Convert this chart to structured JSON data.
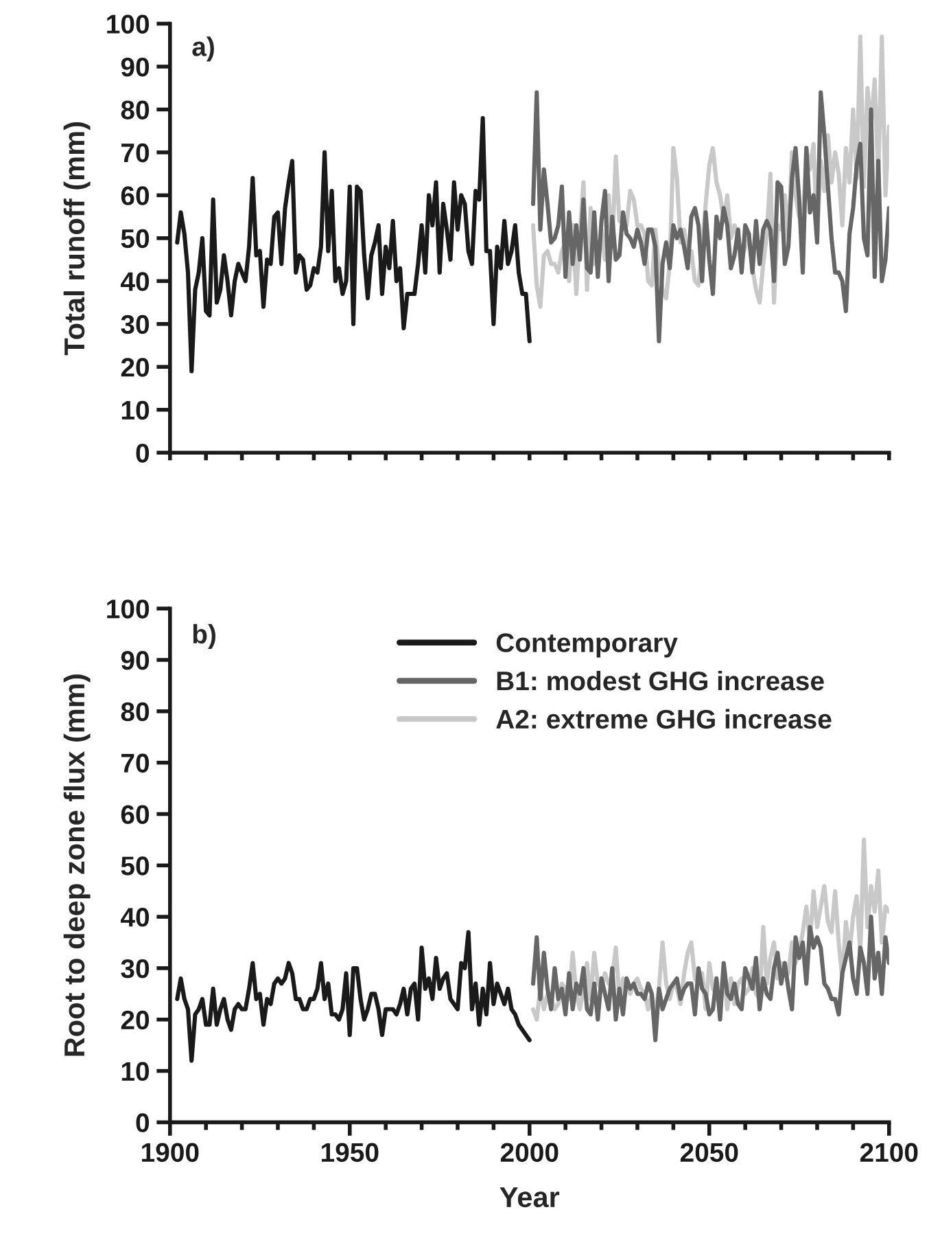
{
  "chart_data": [
    {
      "type": "line",
      "ylabel": "Total runoff (mm)",
      "annotations": [
        "a)"
      ],
      "xlim": [
        1900,
        2100
      ],
      "xticks": [
        {
          "value": 1900,
          "label": null
        },
        {
          "value": 1910,
          "label": null
        },
        {
          "value": 1920,
          "label": null
        },
        {
          "value": 1930,
          "label": null
        },
        {
          "value": 1940,
          "label": null
        },
        {
          "value": 1950,
          "label": null
        },
        {
          "value": 1960,
          "label": null
        },
        {
          "value": 1970,
          "label": null
        },
        {
          "value": 1980,
          "label": null
        },
        {
          "value": 1990,
          "label": null
        },
        {
          "value": 2000,
          "label": null
        },
        {
          "value": 2010,
          "label": null
        },
        {
          "value": 2020,
          "label": null
        },
        {
          "value": 2030,
          "label": null
        },
        {
          "value": 2040,
          "label": null
        },
        {
          "value": 2050,
          "label": null
        },
        {
          "value": 2060,
          "label": null
        },
        {
          "value": 2070,
          "label": null
        },
        {
          "value": 2080,
          "label": null
        },
        {
          "value": 2090,
          "label": null
        },
        {
          "value": 2100,
          "label": null
        }
      ],
      "ylim": [
        0,
        100
      ],
      "yticks": [
        0,
        10,
        20,
        30,
        40,
        50,
        60,
        70,
        80,
        90,
        100
      ],
      "tick_labels": "y",
      "grid": false,
      "legend": false,
      "line_style": "solid",
      "marker": "none",
      "series": [
        {
          "color": "#1a1a1a",
          "x": [
            1902,
            1903,
            1904,
            1905,
            1906,
            1907,
            1908,
            1909,
            1910,
            1911,
            1912,
            1913,
            1914,
            1915,
            1916,
            1917,
            1918,
            1919,
            1920,
            1921,
            1922,
            1923,
            1924,
            1925,
            1926,
            1927,
            1928,
            1929,
            1930,
            1931,
            1932,
            1933,
            1934,
            1935,
            1936,
            1937,
            1938,
            1939,
            1940,
            1941,
            1942,
            1943,
            1944,
            1945,
            1946,
            1947,
            1948,
            1949,
            1950,
            1951,
            1952,
            1953,
            1954,
            1955,
            1956,
            1957,
            1958,
            1959,
            1960,
            1961,
            1962,
            1963,
            1964,
            1965,
            1966,
            1967,
            1968,
            1969,
            1970,
            1971,
            1972,
            1973,
            1974,
            1975,
            1976,
            1977,
            1978,
            1979,
            1980,
            1981,
            1982,
            1983,
            1984,
            1985,
            1986,
            1987,
            1988,
            1989,
            1990,
            1991,
            1992,
            1993,
            1994,
            1995,
            1996,
            1997,
            1998,
            1999,
            2000
          ],
          "values": [
            49,
            56,
            51,
            42,
            19,
            38,
            42,
            50,
            33,
            32,
            59,
            35,
            38,
            46,
            40,
            32,
            40,
            44,
            42,
            40,
            48,
            64,
            46,
            47,
            34,
            45,
            44,
            55,
            56,
            44,
            57,
            63,
            68,
            42,
            46,
            45,
            38,
            39,
            43,
            42,
            48,
            70,
            47,
            61,
            40,
            43,
            37,
            40,
            62,
            30,
            62,
            61,
            46,
            36,
            46,
            49,
            53,
            37,
            48,
            43,
            54,
            40,
            43,
            29,
            37,
            37,
            37,
            44,
            53,
            42,
            60,
            53,
            63,
            42,
            58,
            52,
            45,
            63,
            52,
            60,
            58,
            47,
            44,
            61,
            59,
            78,
            47,
            47,
            30,
            48,
            43,
            54,
            44,
            47,
            53,
            42,
            37,
            37,
            26
          ]
        },
        {
          "color": "#666666",
          "x": [
            2001,
            2002,
            2003,
            2004,
            2005,
            2006,
            2007,
            2008,
            2009,
            2010,
            2011,
            2012,
            2013,
            2014,
            2015,
            2016,
            2017,
            2018,
            2019,
            2020,
            2021,
            2022,
            2023,
            2024,
            2025,
            2026,
            2027,
            2028,
            2029,
            2030,
            2031,
            2032,
            2033,
            2034,
            2035,
            2036,
            2037,
            2038,
            2039,
            2040,
            2041,
            2042,
            2043,
            2044,
            2045,
            2046,
            2047,
            2048,
            2049,
            2050,
            2051,
            2052,
            2053,
            2054,
            2055,
            2056,
            2057,
            2058,
            2059,
            2060,
            2061,
            2062,
            2063,
            2064,
            2065,
            2066,
            2067,
            2068,
            2069,
            2070,
            2071,
            2072,
            2073,
            2074,
            2075,
            2076,
            2077,
            2078,
            2079,
            2080,
            2081,
            2082,
            2083,
            2084,
            2085,
            2086,
            2087,
            2088,
            2089,
            2090,
            2091,
            2092,
            2093,
            2094,
            2095,
            2096,
            2097,
            2098,
            2099,
            2100
          ],
          "values": [
            58,
            84,
            52,
            66,
            58,
            49,
            50,
            53,
            62,
            41,
            56,
            44,
            53,
            45,
            59,
            43,
            42,
            56,
            41,
            54,
            61,
            40,
            55,
            45,
            46,
            56,
            51,
            50,
            48,
            52,
            49,
            44,
            52,
            52,
            48,
            26,
            44,
            49,
            43,
            53,
            50,
            52,
            48,
            43,
            55,
            57,
            53,
            40,
            56,
            45,
            37,
            55,
            50,
            57,
            53,
            43,
            46,
            52,
            42,
            53,
            51,
            42,
            54,
            44,
            52,
            54,
            52,
            40,
            63,
            62,
            44,
            48,
            64,
            71,
            59,
            42,
            71,
            56,
            60,
            49,
            84,
            74,
            62,
            50,
            42,
            42,
            40,
            33,
            51,
            57,
            67,
            72,
            50,
            46,
            80,
            41,
            68,
            40,
            45,
            57
          ]
        },
        {
          "color": "#c8c8c8",
          "x": [
            2001,
            2002,
            2003,
            2004,
            2005,
            2006,
            2007,
            2008,
            2009,
            2010,
            2011,
            2012,
            2013,
            2014,
            2015,
            2016,
            2017,
            2018,
            2019,
            2020,
            2021,
            2022,
            2023,
            2024,
            2025,
            2026,
            2027,
            2028,
            2029,
            2030,
            2031,
            2032,
            2033,
            2034,
            2035,
            2036,
            2037,
            2038,
            2039,
            2040,
            2041,
            2042,
            2043,
            2044,
            2045,
            2046,
            2047,
            2048,
            2049,
            2050,
            2051,
            2052,
            2053,
            2054,
            2055,
            2056,
            2057,
            2058,
            2059,
            2060,
            2061,
            2062,
            2063,
            2064,
            2065,
            2066,
            2067,
            2068,
            2069,
            2070,
            2071,
            2072,
            2073,
            2074,
            2075,
            2076,
            2077,
            2078,
            2079,
            2080,
            2081,
            2082,
            2083,
            2084,
            2085,
            2086,
            2087,
            2088,
            2089,
            2090,
            2091,
            2092,
            2093,
            2094,
            2095,
            2096,
            2097,
            2098,
            2099,
            2100
          ],
          "values": [
            53,
            39,
            34,
            46,
            47,
            44,
            44,
            42,
            47,
            49,
            40,
            53,
            37,
            51,
            63,
            38,
            57,
            44,
            45,
            52,
            45,
            60,
            48,
            69,
            54,
            54,
            53,
            61,
            59,
            53,
            53,
            51,
            40,
            39,
            52,
            43,
            38,
            36,
            44,
            71,
            64,
            49,
            52,
            45,
            47,
            40,
            39,
            48,
            58,
            67,
            71,
            63,
            60,
            54,
            60,
            50,
            53,
            50,
            45,
            48,
            51,
            43,
            38,
            35,
            44,
            51,
            65,
            35,
            53,
            52,
            60,
            50,
            70,
            60,
            55,
            53,
            71,
            66,
            72,
            50,
            68,
            61,
            74,
            63,
            70,
            65,
            53,
            71,
            63,
            80,
            64,
            97,
            62,
            85,
            76,
            87,
            64,
            97,
            60,
            76
          ]
        }
      ]
    },
    {
      "type": "line",
      "xlabel": "Year",
      "ylabel": "Root to deep zone flux (mm)",
      "annotations": [
        "b)"
      ],
      "xlim": [
        1900,
        2100
      ],
      "xticks": [
        1900,
        {
          "value": 1910,
          "label": null
        },
        {
          "value": 1920,
          "label": null
        },
        {
          "value": 1930,
          "label": null
        },
        {
          "value": 1940,
          "label": null
        },
        1950,
        {
          "value": 1960,
          "label": null
        },
        {
          "value": 1970,
          "label": null
        },
        {
          "value": 1980,
          "label": null
        },
        {
          "value": 1990,
          "label": null
        },
        2000,
        {
          "value": 2010,
          "label": null
        },
        {
          "value": 2020,
          "label": null
        },
        {
          "value": 2030,
          "label": null
        },
        {
          "value": 2040,
          "label": null
        },
        2050,
        {
          "value": 2060,
          "label": null
        },
        {
          "value": 2070,
          "label": null
        },
        {
          "value": 2080,
          "label": null
        },
        {
          "value": 2090,
          "label": null
        },
        2100
      ],
      "ylim": [
        0,
        100
      ],
      "yticks": [
        0,
        10,
        20,
        30,
        40,
        50,
        60,
        70,
        80,
        90,
        100
      ],
      "grid": false,
      "legend": "top",
      "line_style": "solid",
      "marker": "none",
      "series": [
        {
          "name": "Contemporary",
          "color": "#1a1a1a",
          "x": [
            1902,
            1903,
            1904,
            1905,
            1906,
            1907,
            1908,
            1909,
            1910,
            1911,
            1912,
            1913,
            1914,
            1915,
            1916,
            1917,
            1918,
            1919,
            1920,
            1921,
            1922,
            1923,
            1924,
            1925,
            1926,
            1927,
            1928,
            1929,
            1930,
            1931,
            1932,
            1933,
            1934,
            1935,
            1936,
            1937,
            1938,
            1939,
            1940,
            1941,
            1942,
            1943,
            1944,
            1945,
            1946,
            1947,
            1948,
            1949,
            1950,
            1951,
            1952,
            1953,
            1954,
            1955,
            1956,
            1957,
            1958,
            1959,
            1960,
            1961,
            1962,
            1963,
            1964,
            1965,
            1966,
            1967,
            1968,
            1969,
            1970,
            1971,
            1972,
            1973,
            1974,
            1975,
            1976,
            1977,
            1978,
            1979,
            1980,
            1981,
            1982,
            1983,
            1984,
            1985,
            1986,
            1987,
            1988,
            1989,
            1990,
            1991,
            1992,
            1993,
            1994,
            1995,
            1996,
            1997,
            1998,
            1999,
            2000
          ],
          "values": [
            24,
            28,
            24,
            22,
            12,
            21,
            22,
            24,
            19,
            19,
            26,
            19,
            22,
            24,
            20,
            18,
            22,
            23,
            22,
            22,
            26,
            31,
            24,
            25,
            19,
            24,
            23,
            27,
            28,
            27,
            28,
            31,
            29,
            24,
            24,
            22,
            22,
            24,
            24,
            26,
            31,
            24,
            27,
            21,
            21,
            20,
            22,
            29,
            17,
            30,
            30,
            24,
            20,
            22,
            25,
            25,
            22,
            17,
            22,
            22,
            22,
            21,
            23,
            26,
            21,
            26,
            27,
            20,
            34,
            26,
            28,
            24,
            32,
            26,
            28,
            29,
            24,
            23,
            22,
            31,
            30,
            37,
            22,
            27,
            19,
            26,
            21,
            31,
            23,
            27,
            25,
            23,
            26,
            22,
            21,
            19,
            18,
            17,
            16
          ]
        },
        {
          "name": "B1: modest GHG increase",
          "color": "#666666",
          "x": [
            2001,
            2002,
            2003,
            2004,
            2005,
            2006,
            2007,
            2008,
            2009,
            2010,
            2011,
            2012,
            2013,
            2014,
            2015,
            2016,
            2017,
            2018,
            2019,
            2020,
            2021,
            2022,
            2023,
            2024,
            2025,
            2026,
            2027,
            2028,
            2029,
            2030,
            2031,
            2032,
            2033,
            2034,
            2035,
            2036,
            2037,
            2038,
            2039,
            2040,
            2041,
            2042,
            2043,
            2044,
            2045,
            2046,
            2047,
            2048,
            2049,
            2050,
            2051,
            2052,
            2053,
            2054,
            2055,
            2056,
            2057,
            2058,
            2059,
            2060,
            2061,
            2062,
            2063,
            2064,
            2065,
            2066,
            2067,
            2068,
            2069,
            2070,
            2071,
            2072,
            2073,
            2074,
            2075,
            2076,
            2077,
            2078,
            2079,
            2080,
            2081,
            2082,
            2083,
            2084,
            2085,
            2086,
            2087,
            2088,
            2089,
            2090,
            2091,
            2092,
            2093,
            2094,
            2095,
            2096,
            2097,
            2098,
            2099,
            2100
          ],
          "values": [
            27,
            36,
            24,
            33,
            26,
            22,
            30,
            24,
            26,
            21,
            29,
            22,
            27,
            25,
            30,
            22,
            21,
            27,
            20,
            28,
            25,
            22,
            30,
            20,
            26,
            21,
            28,
            26,
            27,
            25,
            25,
            24,
            27,
            25,
            16,
            26,
            22,
            24,
            26,
            27,
            28,
            24,
            26,
            27,
            27,
            21,
            30,
            26,
            25,
            21,
            22,
            28,
            20,
            31,
            25,
            24,
            27,
            23,
            22,
            30,
            28,
            26,
            32,
            22,
            28,
            25,
            24,
            30,
            33,
            27,
            31,
            26,
            22,
            36,
            32,
            35,
            27,
            38,
            34,
            36,
            34,
            27,
            26,
            24,
            24,
            21,
            29,
            32,
            35,
            28,
            25,
            34,
            31,
            25,
            40,
            28,
            33,
            25,
            36,
            31
          ]
        },
        {
          "name": "A2: extreme GHG increase",
          "color": "#c8c8c8",
          "x": [
            2001,
            2002,
            2003,
            2004,
            2005,
            2006,
            2007,
            2008,
            2009,
            2010,
            2011,
            2012,
            2013,
            2014,
            2015,
            2016,
            2017,
            2018,
            2019,
            2020,
            2021,
            2022,
            2023,
            2024,
            2025,
            2026,
            2027,
            2028,
            2029,
            2030,
            2031,
            2032,
            2033,
            2034,
            2035,
            2036,
            2037,
            2038,
            2039,
            2040,
            2041,
            2042,
            2043,
            2044,
            2045,
            2046,
            2047,
            2048,
            2049,
            2050,
            2051,
            2052,
            2053,
            2054,
            2055,
            2056,
            2057,
            2058,
            2059,
            2060,
            2061,
            2062,
            2063,
            2064,
            2065,
            2066,
            2067,
            2068,
            2069,
            2070,
            2071,
            2072,
            2073,
            2074,
            2075,
            2076,
            2077,
            2078,
            2079,
            2080,
            2081,
            2082,
            2083,
            2084,
            2085,
            2086,
            2087,
            2088,
            2089,
            2090,
            2091,
            2092,
            2093,
            2094,
            2095,
            2096,
            2097,
            2098,
            2099,
            2100
          ],
          "values": [
            22,
            20,
            26,
            22,
            25,
            24,
            22,
            23,
            27,
            26,
            24,
            33,
            25,
            22,
            26,
            31,
            24,
            33,
            27,
            26,
            29,
            27,
            28,
            34,
            24,
            28,
            27,
            25,
            27,
            28,
            26,
            25,
            22,
            25,
            21,
            26,
            35,
            27,
            24,
            27,
            26,
            23,
            29,
            33,
            35,
            28,
            27,
            29,
            22,
            31,
            26,
            25,
            24,
            30,
            22,
            28,
            23,
            27,
            28,
            25,
            26,
            30,
            25,
            24,
            38,
            27,
            32,
            35,
            28,
            31,
            30,
            29,
            35,
            31,
            33,
            37,
            42,
            35,
            45,
            38,
            42,
            46,
            39,
            37,
            45,
            35,
            28,
            39,
            33,
            40,
            44,
            33,
            55,
            38,
            46,
            41,
            49,
            35,
            42,
            41
          ]
        }
      ]
    }
  ]
}
